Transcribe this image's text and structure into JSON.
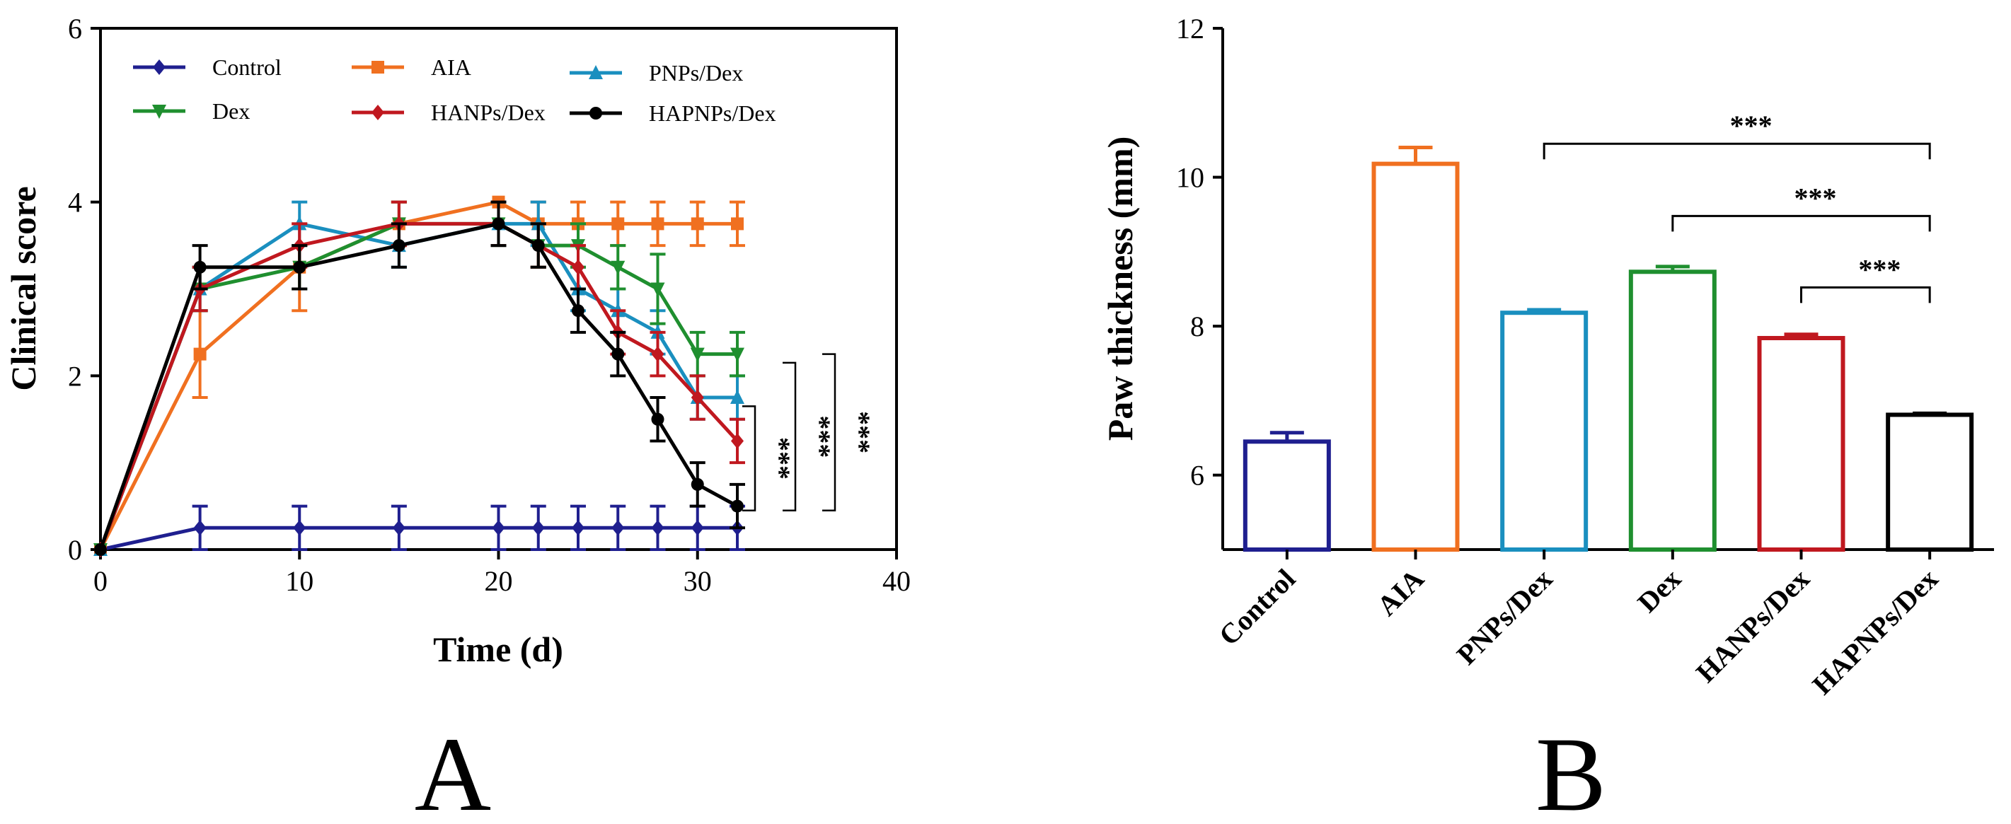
{
  "chart_data": [
    {
      "type": "line",
      "panel_label": "A",
      "xlabel": "Time (d)",
      "ylabel": "Clinical score",
      "xlim": [
        0,
        40
      ],
      "ylim": [
        0,
        6
      ],
      "xticks": [
        0,
        10,
        20,
        30,
        40
      ],
      "yticks": [
        0,
        2,
        4,
        6
      ],
      "grid": false,
      "legend_position": "top",
      "series": [
        {
          "name": "Control",
          "color": "#1f1f8f",
          "marker": "diamond",
          "x": [
            0,
            5,
            10,
            15,
            20,
            22,
            24,
            26,
            28,
            30,
            32
          ],
          "y": [
            0,
            0.25,
            0.25,
            0.25,
            0.25,
            0.25,
            0.25,
            0.25,
            0.25,
            0.25,
            0.25
          ],
          "err": [
            0,
            0.25,
            0.25,
            0.25,
            0.25,
            0.25,
            0.25,
            0.25,
            0.25,
            0.25,
            0.25
          ]
        },
        {
          "name": "AIA",
          "color": "#f07020",
          "marker": "square",
          "x": [
            0,
            5,
            10,
            15,
            20,
            22,
            24,
            26,
            28,
            30,
            32
          ],
          "y": [
            0,
            2.25,
            3.25,
            3.75,
            4.0,
            3.75,
            3.75,
            3.75,
            3.75,
            3.75,
            3.75
          ],
          "err": [
            0,
            0.5,
            0.5,
            0.25,
            0,
            0.25,
            0.25,
            0.25,
            0.25,
            0.25,
            0.25
          ]
        },
        {
          "name": "PNPs/Dex",
          "color": "#1a8fbf",
          "marker": "triangle",
          "x": [
            0,
            5,
            10,
            15,
            20,
            22,
            24,
            26,
            28,
            30,
            32
          ],
          "y": [
            0,
            3.0,
            3.75,
            3.5,
            3.75,
            3.75,
            3.0,
            2.75,
            2.5,
            1.75,
            1.75
          ],
          "err": [
            0,
            0.25,
            0.25,
            0.25,
            0.25,
            0.25,
            0.25,
            0.25,
            0.25,
            0.25,
            0.25
          ]
        },
        {
          "name": "Dex",
          "color": "#1f8f2f",
          "marker": "triangle-down",
          "x": [
            0,
            5,
            10,
            15,
            20,
            22,
            24,
            26,
            28,
            30,
            32
          ],
          "y": [
            0,
            3.0,
            3.25,
            3.75,
            3.75,
            3.5,
            3.5,
            3.25,
            3.0,
            2.25,
            2.25
          ],
          "err": [
            0,
            0.25,
            0.25,
            0.25,
            0.25,
            0.25,
            0.25,
            0.25,
            0.4,
            0.25,
            0.25
          ]
        },
        {
          "name": "HANPs/Dex",
          "color": "#c0181f",
          "marker": "diamond",
          "x": [
            0,
            5,
            10,
            15,
            20,
            22,
            24,
            26,
            28,
            30,
            32
          ],
          "y": [
            0,
            3.0,
            3.5,
            3.75,
            3.75,
            3.5,
            3.25,
            2.5,
            2.25,
            1.75,
            1.25
          ],
          "err": [
            0,
            0.25,
            0.25,
            0.25,
            0.25,
            0.25,
            0.25,
            0.25,
            0.25,
            0.25,
            0.25
          ]
        },
        {
          "name": "HAPNPs/Dex",
          "color": "#000000",
          "marker": "circle",
          "x": [
            0,
            5,
            10,
            15,
            20,
            22,
            24,
            26,
            28,
            30,
            32
          ],
          "y": [
            0,
            3.25,
            3.25,
            3.5,
            3.75,
            3.5,
            2.75,
            2.25,
            1.5,
            0.75,
            0.5
          ],
          "err": [
            0,
            0.25,
            0.25,
            0.25,
            0.25,
            0.25,
            0.25,
            0.25,
            0.25,
            0.25,
            0.25
          ]
        }
      ],
      "significance": [
        {
          "label": "***",
          "from_y": 0.45,
          "to_y": 1.65
        },
        {
          "label": "***",
          "from_y": 0.45,
          "to_y": 2.15
        },
        {
          "label": "***",
          "from_y": 0.45,
          "to_y": 2.25
        }
      ]
    },
    {
      "type": "bar",
      "panel_label": "B",
      "xlabel": "",
      "ylabel": "Paw thickness (mm)",
      "ylim": [
        5,
        12
      ],
      "yticks": [
        6,
        8,
        10,
        12
      ],
      "grid": false,
      "categories": [
        "Control",
        "AIA",
        "PNPs/Dex",
        "Dex",
        "HANPs/Dex",
        "HAPNPs/Dex"
      ],
      "values": [
        6.45,
        10.18,
        8.18,
        8.73,
        7.84,
        6.81
      ],
      "errors": [
        0.12,
        0.22,
        0.04,
        0.07,
        0.05,
        0.02
      ],
      "colors": [
        "#1f1f8f",
        "#f07020",
        "#1a8fbf",
        "#1f8f2f",
        "#c0181f",
        "#000000"
      ],
      "significance": [
        {
          "label": "***",
          "from": 2,
          "to": 5,
          "y": 10.45
        },
        {
          "label": "***",
          "from": 3,
          "to": 5,
          "y": 9.48
        },
        {
          "label": "***",
          "from": 4,
          "to": 5,
          "y": 8.52
        }
      ]
    }
  ]
}
